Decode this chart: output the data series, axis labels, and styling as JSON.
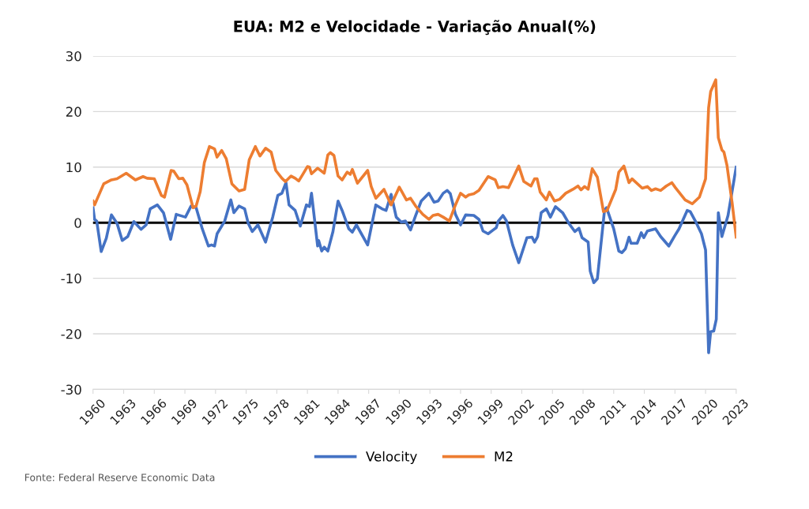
{
  "chart_data": {
    "type": "line",
    "title": "EUA: M2 e Velocidade - Variação Anual(%)",
    "series": [
      {
        "name": "Velocity",
        "color": "#4472c4",
        "x": [
          1960.0,
          1960.15,
          1960.36,
          1960.8,
          1961.3,
          1961.8,
          1962.35,
          1962.86,
          1963.4,
          1964.0,
          1964.7,
          1965.2,
          1965.6,
          1966.3,
          1966.9,
          1967.6,
          1968.15,
          1969.05,
          1969.6,
          1970.1,
          1970.7,
          1971.3,
          1971.6,
          1971.9,
          1972.15,
          1972.9,
          1973.5,
          1973.8,
          1974.3,
          1974.85,
          1975.2,
          1975.6,
          1976.15,
          1976.9,
          1977.6,
          1978.1,
          1978.5,
          1978.9,
          1979.2,
          1979.8,
          1980.3,
          1980.9,
          1981.2,
          1981.4,
          1982.0,
          1982.1,
          1982.4,
          1982.65,
          1983.0,
          1983.5,
          1984.0,
          1984.4,
          1985.05,
          1985.4,
          1985.8,
          1986.9,
          1987.7,
          1988.3,
          1988.7,
          1989.2,
          1989.7,
          1990.2,
          1990.6,
          1991.1,
          1991.6,
          1992.15,
          1992.9,
          1993.4,
          1993.8,
          1994.3,
          1994.7,
          1995.0,
          1995.5,
          1996.0,
          1996.5,
          1997.3,
          1997.8,
          1998.2,
          1998.7,
          1999.2,
          1999.5,
          1999.7,
          2000.15,
          2000.5,
          2001.1,
          2001.7,
          2002.5,
          2003.0,
          2003.25,
          2003.55,
          2003.9,
          2004.4,
          2004.8,
          2005.3,
          2006.0,
          2006.6,
          2007.2,
          2007.6,
          2007.9,
          2008.5,
          2008.7,
          2009.05,
          2009.4,
          2010.1,
          2010.3,
          2011.0,
          2011.5,
          2011.8,
          2012.15,
          2012.5,
          2012.7,
          2013.3,
          2013.7,
          2013.95,
          2014.3,
          2015.1,
          2015.6,
          2016.4,
          2017.0,
          2017.4,
          2018.2,
          2018.5,
          2019.0,
          2019.6,
          2020.0,
          2020.3,
          2020.5,
          2020.8,
          2021.05,
          2021.25,
          2021.6,
          2022.2,
          2023.0
        ],
        "values": [
          2.7,
          0.6,
          0.3,
          -5.2,
          -2.8,
          1.4,
          -0.1,
          -3.2,
          -2.5,
          0.2,
          -1.2,
          -0.4,
          2.5,
          3.2,
          1.8,
          -3.0,
          1.5,
          1.0,
          3.0,
          2.7,
          -1.1,
          -4.2,
          -4.0,
          -4.2,
          -2.0,
          0.3,
          4.1,
          1.8,
          3.0,
          2.5,
          -0.1,
          -1.6,
          -0.4,
          -3.5,
          1.0,
          4.9,
          5.3,
          7.2,
          3.2,
          2.2,
          -0.6,
          3.2,
          2.9,
          5.3,
          -4.2,
          -3.2,
          -5.1,
          -4.4,
          -5.1,
          -1.6,
          3.9,
          2.2,
          -1.1,
          -1.7,
          -0.4,
          -4.0,
          3.2,
          2.5,
          2.2,
          5.1,
          1.0,
          0.1,
          0.3,
          -1.3,
          1.3,
          3.9,
          5.3,
          3.7,
          3.9,
          5.3,
          5.8,
          5.2,
          1.5,
          -0.4,
          1.4,
          1.3,
          0.6,
          -1.5,
          -2.0,
          -1.3,
          -0.9,
          0.3,
          1.3,
          0.3,
          -4.0,
          -7.2,
          -2.7,
          -2.6,
          -3.5,
          -2.5,
          1.8,
          2.5,
          1.0,
          2.9,
          1.8,
          -0.1,
          -1.6,
          -1.0,
          -2.7,
          -3.5,
          -8.7,
          -10.8,
          -10.1,
          2.2,
          2.7,
          -1.1,
          -5.1,
          -5.4,
          -4.7,
          -2.6,
          -3.7,
          -3.7,
          -1.8,
          -2.7,
          -1.5,
          -1.1,
          -2.5,
          -4.2,
          -2.3,
          -1.1,
          2.2,
          2.0,
          0.3,
          -2.0,
          -4.9,
          -23.4,
          -19.6,
          -19.5,
          -17.4,
          1.8,
          -2.5,
          1.3,
          10.0
        ]
      },
      {
        "name": "M2",
        "color": "#ed7d31",
        "x": [
          1960.0,
          1960.15,
          1961.05,
          1961.8,
          1962.35,
          1963.25,
          1964.15,
          1964.9,
          1965.3,
          1966.0,
          1966.7,
          1967.0,
          1967.65,
          1967.9,
          1968.4,
          1968.8,
          1969.2,
          1969.8,
          1970.1,
          1970.5,
          1970.9,
          1971.4,
          1971.9,
          1972.15,
          1972.6,
          1973.05,
          1973.6,
          1974.3,
          1974.85,
          1975.3,
          1975.9,
          1976.35,
          1976.9,
          1977.45,
          1977.9,
          1978.5,
          1978.85,
          1979.4,
          1979.8,
          1980.15,
          1980.55,
          1981.0,
          1981.2,
          1981.4,
          1982.0,
          1982.65,
          1983.0,
          1983.25,
          1983.6,
          1984.0,
          1984.4,
          1984.9,
          1985.2,
          1985.4,
          1985.9,
          1986.9,
          1987.25,
          1987.7,
          1988.5,
          1989.2,
          1990.0,
          1990.7,
          1991.1,
          1991.6,
          1992.3,
          1992.9,
          1993.3,
          1993.8,
          1994.3,
          1994.9,
          1995.5,
          1996.0,
          1996.5,
          1996.8,
          1997.3,
          1997.8,
          1998.7,
          1999.4,
          1999.7,
          2000.15,
          2000.7,
          2001.7,
          2002.2,
          2002.9,
          2003.25,
          2003.5,
          2003.8,
          2004.4,
          2004.7,
          2005.2,
          2005.7,
          2006.3,
          2007.0,
          2007.5,
          2007.8,
          2008.15,
          2008.5,
          2008.9,
          2009.4,
          2010.0,
          2010.35,
          2011.2,
          2011.5,
          2012.0,
          2012.5,
          2012.8,
          2013.8,
          2014.3,
          2014.7,
          2015.1,
          2015.6,
          2016.15,
          2016.7,
          2017.05,
          2018.0,
          2018.7,
          2019.4,
          2020.0,
          2020.3,
          2020.5,
          2021.0,
          2021.25,
          2021.6,
          2021.8,
          2022.1,
          2022.6,
          2023.0
        ],
        "values": [
          3.9,
          3.2,
          7.0,
          7.7,
          7.9,
          8.9,
          7.7,
          8.3,
          8.0,
          7.9,
          4.9,
          4.6,
          9.4,
          9.3,
          7.9,
          8.0,
          6.8,
          2.7,
          3.0,
          5.6,
          10.8,
          13.7,
          13.3,
          11.8,
          13.0,
          11.5,
          7.0,
          5.7,
          6.0,
          11.3,
          13.7,
          12.0,
          13.4,
          12.7,
          9.4,
          8.0,
          7.4,
          8.4,
          8.0,
          7.5,
          8.7,
          10.1,
          10.0,
          8.8,
          9.8,
          8.9,
          12.2,
          12.6,
          12.1,
          8.4,
          7.7,
          9.1,
          8.7,
          9.6,
          7.1,
          9.4,
          6.5,
          4.4,
          6.0,
          3.2,
          6.4,
          4.1,
          4.4,
          3.0,
          1.5,
          0.6,
          1.3,
          1.5,
          1.0,
          0.3,
          3.2,
          5.3,
          4.6,
          5.0,
          5.2,
          5.8,
          8.3,
          7.7,
          6.3,
          6.5,
          6.3,
          10.2,
          7.4,
          6.6,
          7.9,
          7.9,
          5.5,
          4.1,
          5.5,
          3.9,
          4.2,
          5.3,
          6.0,
          6.6,
          5.9,
          6.5,
          6.0,
          9.7,
          8.2,
          2.0,
          2.2,
          6.0,
          9.1,
          10.2,
          7.2,
          7.9,
          6.2,
          6.5,
          5.8,
          6.1,
          5.8,
          6.6,
          7.2,
          6.3,
          4.1,
          3.4,
          4.6,
          7.9,
          20.7,
          23.6,
          25.7,
          15.3,
          13.1,
          12.7,
          10.3,
          3.6,
          -2.6
        ]
      }
    ],
    "xlim": [
      1960,
      2023
    ],
    "xticks": [
      1960,
      1963,
      1966,
      1969,
      1972,
      1975,
      1978,
      1981,
      1984,
      1987,
      1990,
      1993,
      1996,
      1999,
      2002,
      2005,
      2008,
      2011,
      2014,
      2017,
      2020,
      2023
    ],
    "ylim": [
      -30,
      30
    ],
    "yticks": [
      -30,
      -20,
      -10,
      0,
      10,
      20,
      30
    ],
    "grid": "y",
    "legend": "bottom",
    "ref_lines": [
      {
        "axis": "y",
        "value": 0,
        "color": "#000000"
      }
    ],
    "annotations": [
      "Fonte: Federal Reserve Economic Data"
    ]
  }
}
